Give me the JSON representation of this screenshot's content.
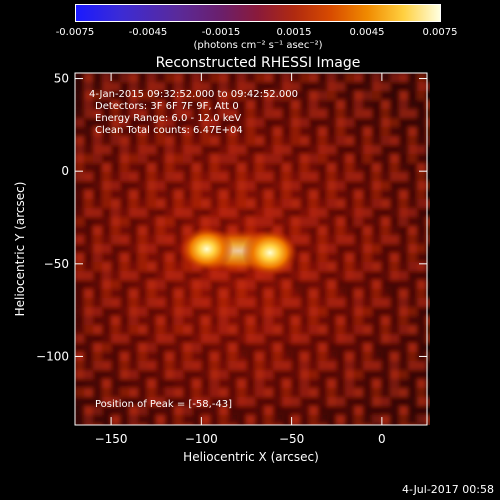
{
  "colorbar": {
    "ticks": [
      "-0.0075",
      "-0.0045",
      "-0.0015",
      "0.0015",
      "0.0045",
      "0.0075"
    ],
    "unit": "(photons cm⁻² s⁻¹ asec⁻²)"
  },
  "chart_data": {
    "type": "heatmap",
    "title": "Reconstructed RHESSI Image",
    "xlabel": "Heliocentric X (arcsec)",
    "ylabel": "Heliocentric Y (arcsec)",
    "xlim": [
      -170,
      25
    ],
    "ylim": [
      -137,
      53
    ],
    "xticks": [
      -150,
      -100,
      -50,
      0
    ],
    "yticks": [
      50,
      0,
      -50,
      -100
    ],
    "sources": [
      {
        "x": -97,
        "y": -42,
        "relative_intensity": 0.95
      },
      {
        "x": -62,
        "y": -44,
        "relative_intensity": 1.0
      }
    ],
    "annotations": [
      "4-Jan-2015 09:32:52.000 to 09:42:52.000",
      "Detectors: 3F 6F 7F 9F, Att 0",
      "Energy Range: 6.0 - 12.0 keV",
      "Clean     Total counts: 6.47E+04"
    ],
    "peak_label": "Position of Peak = [-58,-43]"
  },
  "footer": "4-Jul-2017 00:58"
}
